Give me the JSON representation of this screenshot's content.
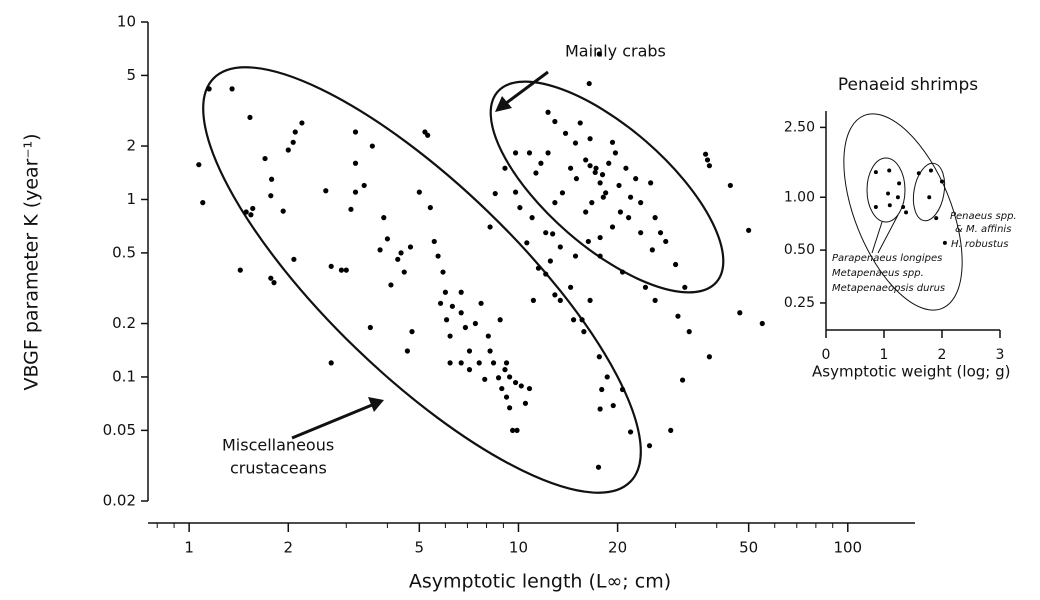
{
  "chart_data": [
    {
      "type": "scatter",
      "xlabel": "Asymptotic length (L∞; cm)",
      "ylabel": "VBGF parameter K (year⁻¹)",
      "xscale": "log",
      "yscale": "log",
      "color": "#000000",
      "xlim": [
        0.75,
        160
      ],
      "ylim": [
        0.02,
        10
      ],
      "xticks": [
        1,
        2,
        5,
        10,
        20,
        50,
        100
      ],
      "xminor_ticks": [
        0.8,
        0.9,
        3,
        4,
        6,
        7,
        8,
        9,
        30,
        40,
        60,
        70,
        80,
        90
      ],
      "yticks": [
        0.02,
        0.05,
        0.1,
        0.2,
        0.5,
        1,
        2,
        5,
        10
      ],
      "annotations": [
        "Mainly crabs",
        "Miscellaneous",
        "crustaceans"
      ],
      "x": [
        1.07,
        1.1,
        1.15,
        1.35,
        1.43,
        1.49,
        1.54,
        1.56,
        1.53,
        1.7,
        1.77,
        1.78,
        1.81,
        1.77,
        1.93,
        2.0,
        2.07,
        2.1,
        2.2,
        2.08,
        2.7,
        2.6,
        2.7,
        2.9,
        3.0,
        3.2,
        3.2,
        3.2,
        3.1,
        3.4,
        3.6,
        3.55,
        3.9,
        3.8,
        4.0,
        4.1,
        4.3,
        4.4,
        4.5,
        4.7,
        4.75,
        4.6,
        5.2,
        5.3,
        5.4,
        5.0,
        5.55,
        5.7,
        5.9,
        5.8,
        6.0,
        6.3,
        6.7,
        6.05,
        6.7,
        6.2,
        6.2,
        6.7,
        6.9,
        7.1,
        7.4,
        7.1,
        7.7,
        8.1,
        8.2,
        8.8,
        9.1,
        9.4,
        9.8,
        10.2,
        10.5,
        10.8,
        9.2,
        9.4,
        9.6,
        9.9,
        8.4,
        7.6,
        7.9,
        8.7,
        8.9,
        9.2,
        11.1,
        11.5,
        12.1,
        12.5,
        12.7,
        12.9,
        13.4,
        14.4,
        14.7,
        15.8,
        16.5,
        15.6,
        17.6,
        17.9,
        17.7,
        18.6,
        19.4,
        20.7,
        8.2,
        8.5,
        9.8,
        10.1,
        10.6,
        17.5,
        21.9,
        25,
        29,
        31.5,
        30.5,
        33,
        38,
        47,
        55,
        50,
        37,
        37.5,
        38,
        44,
        17.6,
        16.4,
        12.3,
        12.9,
        13.9,
        14.9,
        16,
        16.5,
        17.1,
        17.7,
        18,
        18.4,
        18.8,
        16.7,
        16,
        15,
        14.4,
        13.6,
        12.9,
        12.3,
        11.7,
        11.3,
        10.8,
        9.8,
        9.1,
        11,
        12.1,
        13.4,
        14.9,
        16.3,
        17.7,
        19.3,
        20.4,
        21.9,
        23.5,
        25.2,
        26,
        27,
        28,
        30,
        32,
        19.7,
        21.2,
        22.7,
        15.4,
        16.5,
        19.3,
        20.2,
        21.6,
        23.5,
        25.5,
        17.7,
        20.7,
        24.3,
        26,
        17.2,
        18.1
      ],
      "values": [
        1.57,
        0.96,
        4.2,
        4.2,
        0.4,
        0.85,
        0.82,
        0.89,
        2.9,
        1.7,
        1.05,
        1.3,
        0.34,
        0.36,
        0.86,
        1.9,
        2.1,
        2.4,
        2.7,
        0.46,
        0.12,
        1.12,
        0.42,
        0.4,
        0.4,
        2.4,
        1.6,
        1.1,
        0.88,
        1.2,
        2.0,
        0.19,
        0.79,
        0.52,
        0.6,
        0.33,
        0.46,
        0.5,
        0.39,
        0.54,
        0.18,
        0.14,
        2.4,
        2.3,
        0.9,
        1.1,
        0.58,
        0.48,
        0.39,
        0.26,
        0.3,
        0.25,
        0.3,
        0.21,
        0.23,
        0.17,
        0.12,
        0.12,
        0.19,
        0.14,
        0.2,
        0.11,
        0.26,
        0.17,
        0.14,
        0.21,
        0.11,
        0.1,
        0.093,
        0.089,
        0.071,
        0.086,
        0.077,
        0.067,
        0.05,
        0.05,
        0.12,
        0.12,
        0.097,
        0.099,
        0.086,
        0.12,
        0.27,
        0.41,
        0.38,
        0.45,
        0.64,
        0.29,
        0.27,
        0.32,
        0.21,
        0.18,
        0.27,
        0.21,
        0.13,
        0.085,
        0.066,
        0.1,
        0.069,
        0.085,
        0.7,
        1.08,
        1.1,
        0.9,
        0.57,
        0.031,
        0.049,
        0.041,
        0.05,
        0.096,
        0.22,
        0.18,
        0.13,
        0.23,
        0.2,
        0.67,
        1.8,
        1.67,
        1.55,
        1.2,
        6.6,
        4.5,
        3.1,
        2.75,
        2.36,
        2.08,
        1.67,
        1.55,
        1.42,
        1.24,
        1.38,
        1.09,
        1.6,
        0.96,
        0.85,
        1.31,
        1.5,
        1.09,
        0.96,
        1.83,
        1.6,
        1.41,
        1.83,
        1.83,
        1.5,
        0.79,
        0.65,
        0.54,
        0.48,
        0.58,
        0.61,
        0.7,
        0.85,
        1.03,
        0.96,
        1.24,
        0.79,
        0.65,
        0.58,
        0.43,
        0.32,
        1.83,
        1.5,
        1.31,
        2.7,
        2.2,
        2.1,
        1.2,
        0.79,
        0.65,
        0.52,
        0.48,
        0.39,
        0.32,
        0.27,
        1.5,
        1.03
      ]
    },
    {
      "type": "scatter",
      "title": "Penaeid shrimps",
      "xlabel": "Asymptotic weight (log; g)",
      "xscale": "linear",
      "yscale": "log",
      "color": "#000000",
      "xlim": [
        0,
        3
      ],
      "ylim": [
        0.18,
        3.1
      ],
      "xticks": [
        0,
        1,
        2,
        3
      ],
      "yticks": [
        {
          "value": 0.25,
          "label": "0.25"
        },
        {
          "value": 0.5,
          "label": "0.50"
        },
        {
          "value": 1,
          "label": "1.00"
        },
        {
          "value": 2.5,
          "label": "2.50"
        }
      ],
      "annotations": [
        "Penaeus spp.",
        "& M. affinis",
        "Parapenaeus longipes",
        "Metapenaeus spp.",
        "Metapenaeopsis durus",
        "H. robustus"
      ],
      "x": [
        0.86,
        1.09,
        1.26,
        0.86,
        1.1,
        1.24,
        1.33,
        1.38,
        1.07,
        1.6,
        1.81,
        2.0,
        1.9,
        1.78,
        2.05
      ],
      "values": [
        1.39,
        1.42,
        1.2,
        0.88,
        0.9,
        1.0,
        0.88,
        0.82,
        1.05,
        1.37,
        1.42,
        1.23,
        0.76,
        1.0,
        0.55
      ]
    }
  ]
}
